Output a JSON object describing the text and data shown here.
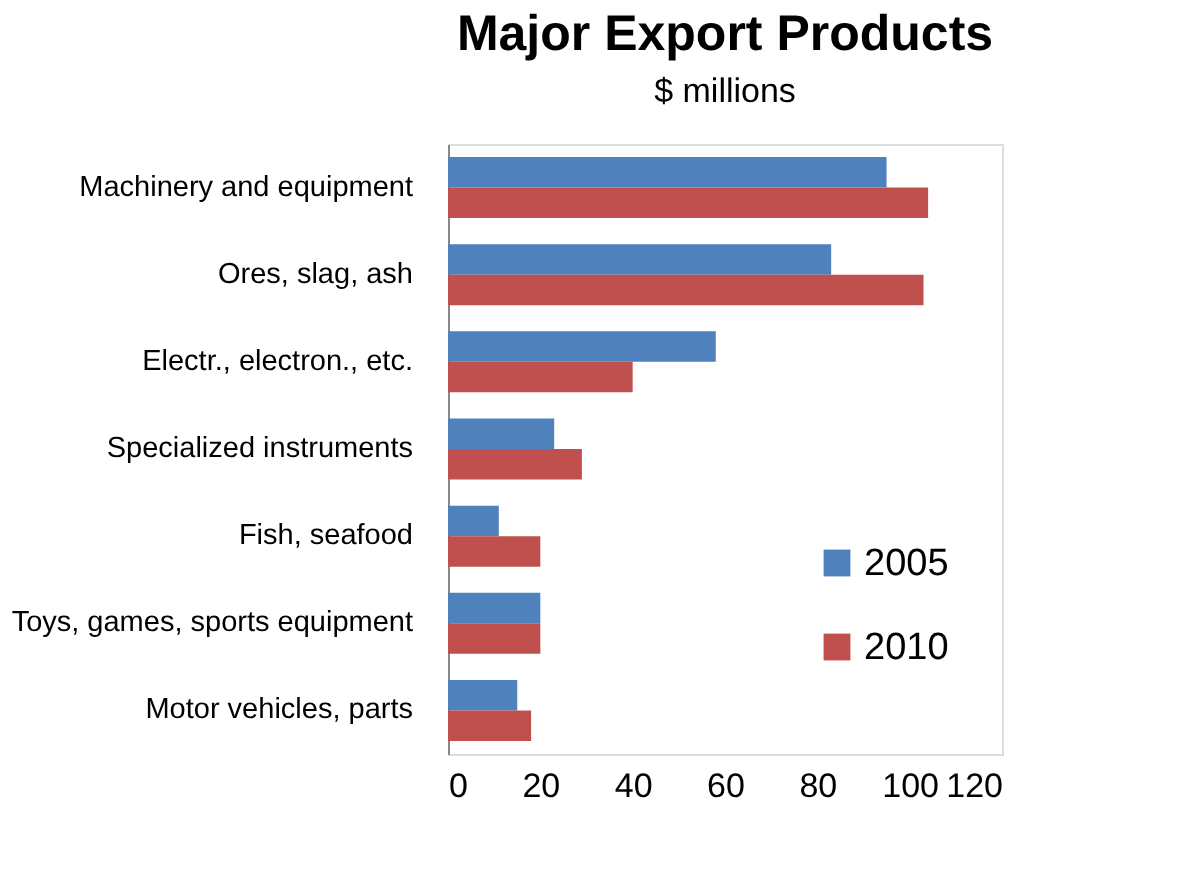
{
  "chart_data": {
    "type": "bar",
    "orientation": "horizontal",
    "title": "Major Export Products",
    "subtitle": "$ millions",
    "categories": [
      "Machinery and equipment",
      "Ores, slag, ash",
      "Electr., electron., etc.",
      "Specialized instruments",
      "Fish, seafood",
      "Toys, games, sports equipment",
      "Motor vehicles, parts"
    ],
    "series": [
      {
        "name": "2005",
        "color": "#4f81bd",
        "values": [
          95,
          83,
          58,
          23,
          11,
          20,
          15
        ]
      },
      {
        "name": "2010",
        "color": "#c0504d",
        "values": [
          104,
          103,
          40,
          29,
          20,
          20,
          18
        ]
      }
    ],
    "xlim": [
      0,
      120
    ],
    "xticks": [
      0,
      20,
      40,
      60,
      80,
      100,
      120
    ],
    "grid": false,
    "legend": "bottom right"
  }
}
